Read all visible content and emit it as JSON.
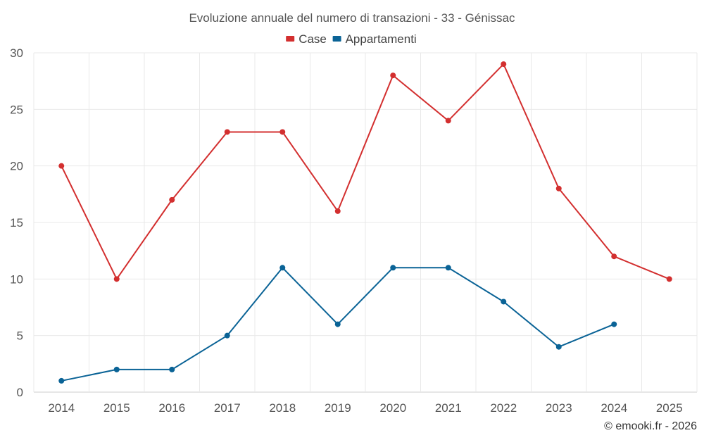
{
  "chart_data": {
    "type": "line",
    "title": "Evoluzione annuale del numero di transazioni - 33 - Génissac",
    "xlabel": "",
    "ylabel": "",
    "categories": [
      "2014",
      "2015",
      "2016",
      "2017",
      "2018",
      "2019",
      "2020",
      "2021",
      "2022",
      "2023",
      "2024",
      "2025"
    ],
    "ylim": [
      0,
      30
    ],
    "yticks": [
      0,
      5,
      10,
      15,
      20,
      25,
      30
    ],
    "grid": true,
    "legend_position": "top-center",
    "series": [
      {
        "name": "Case",
        "color": "#d32f2f",
        "values": [
          20,
          10,
          17,
          23,
          23,
          16,
          28,
          24,
          29,
          18,
          12,
          10
        ]
      },
      {
        "name": "Appartamenti",
        "color": "#0a6396",
        "values": [
          1,
          2,
          2,
          5,
          11,
          6,
          11,
          11,
          8,
          4,
          6,
          null
        ]
      }
    ]
  },
  "credit": "© emooki.fr - 2026"
}
